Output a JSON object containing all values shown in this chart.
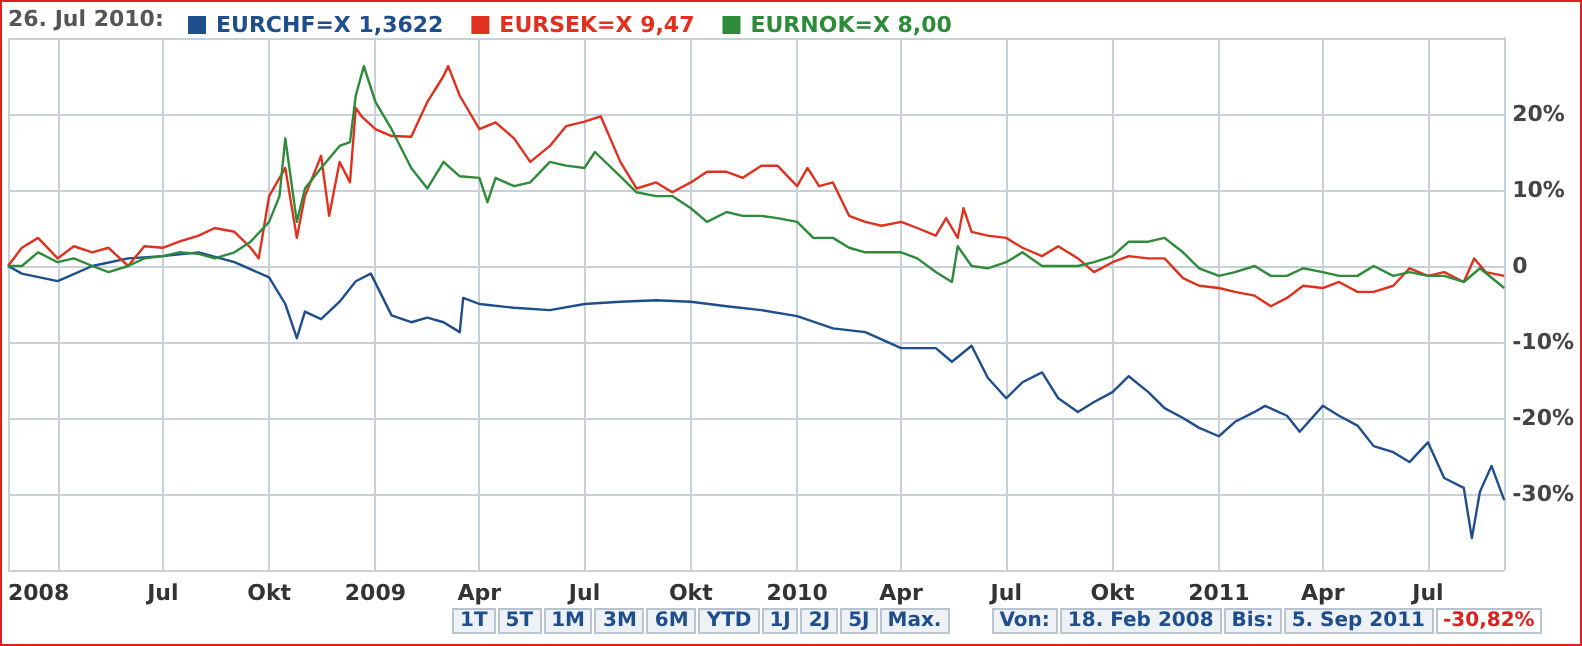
{
  "chart_data": {
    "type": "line",
    "legend_title": "26. Jul 2010:",
    "legend": "top left",
    "grid": true,
    "marker": "none",
    "line_style": "solid",
    "xlim": [
      "2008-02-18",
      "2011-09-05"
    ],
    "xticks": [
      {
        "value": "2008-02-18",
        "label": "2008"
      },
      {
        "value": "2008-04-01",
        "label": null
      },
      {
        "value": "2008-07-01",
        "label": "Jul"
      },
      {
        "value": "2008-10-01",
        "label": "Okt"
      },
      {
        "value": "2009-01-01",
        "label": "2009"
      },
      {
        "value": "2009-04-01",
        "label": "Apr"
      },
      {
        "value": "2009-07-01",
        "label": "Jul"
      },
      {
        "value": "2009-10-01",
        "label": "Okt"
      },
      {
        "value": "2010-01-01",
        "label": "2010"
      },
      {
        "value": "2010-04-01",
        "label": "Apr"
      },
      {
        "value": "2010-07-01",
        "label": "Jul"
      },
      {
        "value": "2010-10-01",
        "label": "Okt"
      },
      {
        "value": "2011-01-01",
        "label": "2011"
      },
      {
        "value": "2011-04-01",
        "label": "Apr"
      },
      {
        "value": "2011-07-01",
        "label": "Jul"
      }
    ],
    "ylim": [
      -40,
      30
    ],
    "yticks": [
      {
        "value": -40,
        "label": null
      },
      {
        "value": -30,
        "label": "-30%"
      },
      {
        "value": -20,
        "label": "-20%"
      },
      {
        "value": -10,
        "label": "-10%"
      },
      0,
      {
        "value": 10,
        "label": "10%"
      },
      {
        "value": 20,
        "label": "20%"
      },
      {
        "value": 30,
        "label": null
      }
    ],
    "series": [
      {
        "name": "EURCHF=X 1,3622",
        "color": "#1f4e8c",
        "x": [
          "2008-02-18",
          "2008-03-01",
          "2008-04-01",
          "2008-05-01",
          "2008-06-01",
          "2008-07-01",
          "2008-08-01",
          "2008-09-01",
          "2008-10-01",
          "2008-10-15",
          "2008-10-25",
          "2008-11-01",
          "2008-11-15",
          "2008-12-01",
          "2008-12-15",
          "2008-12-28",
          "2009-01-15",
          "2009-02-01",
          "2009-02-15",
          "2009-03-01",
          "2009-03-15",
          "2009-03-18",
          "2009-04-01",
          "2009-05-01",
          "2009-06-01",
          "2009-07-01",
          "2009-08-01",
          "2009-09-01",
          "2009-10-01",
          "2009-11-01",
          "2009-12-01",
          "2010-01-01",
          "2010-02-01",
          "2010-03-01",
          "2010-04-01",
          "2010-05-01",
          "2010-05-15",
          "2010-06-01",
          "2010-06-15",
          "2010-07-01",
          "2010-07-15",
          "2010-08-01",
          "2010-08-15",
          "2010-09-01",
          "2010-09-15",
          "2010-10-01",
          "2010-10-15",
          "2010-11-01",
          "2010-11-15",
          "2010-12-01",
          "2010-12-15",
          "2011-01-01",
          "2011-01-15",
          "2011-02-01",
          "2011-02-10",
          "2011-03-01",
          "2011-03-12",
          "2011-04-01",
          "2011-04-15",
          "2011-05-01",
          "2011-05-15",
          "2011-06-01",
          "2011-06-15",
          "2011-07-01",
          "2011-07-15",
          "2011-08-01",
          "2011-08-08",
          "2011-08-15",
          "2011-08-25",
          "2011-09-05"
        ],
        "values": [
          0,
          -1,
          -2,
          0,
          1,
          1.3,
          1.8,
          0.5,
          -1.5,
          -5,
          -9.5,
          -6,
          -7,
          -4.7,
          -2,
          -1,
          -6.5,
          -7.4,
          -6.8,
          -7.4,
          -8.7,
          -4.2,
          -5,
          -5.5,
          -5.8,
          -5,
          -4.7,
          -4.5,
          -4.7,
          -5.3,
          -5.8,
          -6.6,
          -8.2,
          -8.7,
          -10.8,
          -10.8,
          -12.6,
          -10.5,
          -14.7,
          -17.4,
          -15.3,
          -14,
          -17.4,
          -19.2,
          -17.9,
          -16.6,
          -14.5,
          -16.6,
          -18.7,
          -20,
          -21.3,
          -22.4,
          -20.5,
          -19.2,
          -18.4,
          -19.7,
          -21.8,
          -18.4,
          -19.7,
          -21,
          -23.7,
          -24.5,
          -25.8,
          -23.2,
          -27.9,
          -29.2,
          -35.8,
          -29.7,
          -26.3,
          -30.8
        ]
      },
      {
        "name": "EURSEK=X 9,47",
        "color": "#e0301e",
        "x": [
          "2008-02-18",
          "2008-03-01",
          "2008-03-15",
          "2008-04-01",
          "2008-04-15",
          "2008-05-01",
          "2008-05-15",
          "2008-06-01",
          "2008-06-15",
          "2008-07-01",
          "2008-07-15",
          "2008-08-01",
          "2008-08-15",
          "2008-09-01",
          "2008-09-15",
          "2008-09-22",
          "2008-10-01",
          "2008-10-15",
          "2008-10-25",
          "2008-11-01",
          "2008-11-15",
          "2008-11-22",
          "2008-12-01",
          "2008-12-10",
          "2008-12-15",
          "2008-12-20",
          "2009-01-01",
          "2009-01-15",
          "2009-02-01",
          "2009-02-15",
          "2009-03-01",
          "2009-03-05",
          "2009-03-15",
          "2009-04-01",
          "2009-04-15",
          "2009-05-01",
          "2009-05-15",
          "2009-06-01",
          "2009-06-15",
          "2009-07-01",
          "2009-07-15",
          "2009-08-01",
          "2009-08-15",
          "2009-09-01",
          "2009-09-15",
          "2009-10-01",
          "2009-10-15",
          "2009-11-01",
          "2009-11-15",
          "2009-12-01",
          "2009-12-15",
          "2010-01-01",
          "2010-01-10",
          "2010-01-20",
          "2010-02-01",
          "2010-02-15",
          "2010-03-01",
          "2010-03-15",
          "2010-04-01",
          "2010-04-15",
          "2010-05-01",
          "2010-05-10",
          "2010-05-20",
          "2010-05-25",
          "2010-06-01",
          "2010-06-15",
          "2010-07-01",
          "2010-07-15",
          "2010-08-01",
          "2010-08-15",
          "2010-09-01",
          "2010-09-15",
          "2010-10-01",
          "2010-10-15",
          "2010-11-01",
          "2010-11-15",
          "2010-12-01",
          "2010-12-15",
          "2011-01-01",
          "2011-01-15",
          "2011-02-01",
          "2011-02-15",
          "2011-03-01",
          "2011-03-15",
          "2011-04-01",
          "2011-04-15",
          "2011-05-01",
          "2011-05-15",
          "2011-06-01",
          "2011-06-15",
          "2011-07-01",
          "2011-07-15",
          "2011-08-01",
          "2011-08-10",
          "2011-08-20",
          "2011-09-05"
        ],
        "values": [
          0,
          2.4,
          3.7,
          1,
          2.6,
          1.8,
          2.4,
          0,
          2.6,
          2.4,
          3.2,
          4,
          5,
          4.5,
          2.4,
          1,
          9.2,
          12.9,
          3.7,
          9.2,
          14.5,
          6.6,
          13.7,
          11,
          20.8,
          19.7,
          18,
          17.1,
          17,
          21.6,
          25,
          26.3,
          22.4,
          18,
          18.9,
          16.8,
          13.7,
          15.8,
          18.4,
          19,
          19.7,
          13.7,
          10.2,
          11,
          9.7,
          11,
          12.4,
          12.4,
          11.6,
          13.2,
          13.2,
          10.5,
          12.9,
          10.5,
          11,
          6.6,
          5.8,
          5.3,
          5.8,
          5,
          4,
          6.3,
          3.7,
          7.6,
          4.5,
          4,
          3.7,
          2.4,
          1.3,
          2.6,
          1,
          -0.8,
          0.5,
          1.3,
          1,
          1,
          -1.6,
          -2.6,
          -2.9,
          -3.4,
          -3.9,
          -5.3,
          -4.2,
          -2.6,
          -2.9,
          -2.1,
          -3.4,
          -3.4,
          -2.6,
          -0.3,
          -1.3,
          -0.8,
          -2.1,
          1,
          -0.8,
          -1.3
        ]
      },
      {
        "name": "EURNOK=X 8,00",
        "color": "#2e8b3a",
        "x": [
          "2008-02-18",
          "2008-03-01",
          "2008-03-15",
          "2008-04-01",
          "2008-04-15",
          "2008-05-01",
          "2008-05-15",
          "2008-06-01",
          "2008-06-15",
          "2008-07-01",
          "2008-07-15",
          "2008-08-01",
          "2008-08-15",
          "2008-09-01",
          "2008-09-15",
          "2008-10-01",
          "2008-10-10",
          "2008-10-15",
          "2008-10-25",
          "2008-11-01",
          "2008-11-15",
          "2008-12-01",
          "2008-12-10",
          "2008-12-15",
          "2008-12-22",
          "2009-01-01",
          "2009-01-15",
          "2009-02-01",
          "2009-02-15",
          "2009-03-01",
          "2009-03-15",
          "2009-04-01",
          "2009-04-08",
          "2009-04-15",
          "2009-05-01",
          "2009-05-15",
          "2009-06-01",
          "2009-06-15",
          "2009-07-01",
          "2009-07-10",
          "2009-08-01",
          "2009-08-15",
          "2009-09-01",
          "2009-09-15",
          "2009-10-01",
          "2009-10-15",
          "2009-11-01",
          "2009-11-15",
          "2009-12-01",
          "2009-12-15",
          "2010-01-01",
          "2010-01-15",
          "2010-02-01",
          "2010-02-15",
          "2010-03-01",
          "2010-03-15",
          "2010-04-01",
          "2010-04-15",
          "2010-05-01",
          "2010-05-15",
          "2010-05-20",
          "2010-06-01",
          "2010-06-15",
          "2010-07-01",
          "2010-07-15",
          "2010-08-01",
          "2010-08-15",
          "2010-09-01",
          "2010-09-15",
          "2010-10-01",
          "2010-10-15",
          "2010-11-01",
          "2010-11-15",
          "2010-12-01",
          "2010-12-15",
          "2011-01-01",
          "2011-01-15",
          "2011-02-01",
          "2011-02-15",
          "2011-03-01",
          "2011-03-15",
          "2011-04-01",
          "2011-04-15",
          "2011-05-01",
          "2011-05-15",
          "2011-06-01",
          "2011-06-15",
          "2011-07-01",
          "2011-07-15",
          "2011-08-01",
          "2011-08-15",
          "2011-09-05"
        ],
        "values": [
          0,
          0,
          1.8,
          0.5,
          1,
          0,
          -0.8,
          0,
          1,
          1.3,
          1.8,
          1.6,
          1,
          1.8,
          3.2,
          5.8,
          9.2,
          16.8,
          5.8,
          10.2,
          12.9,
          15.8,
          16.3,
          22.4,
          26.3,
          21.6,
          18,
          12.9,
          10.2,
          13.7,
          11.8,
          11.6,
          8.4,
          11.6,
          10.5,
          11,
          13.7,
          13.2,
          12.9,
          15,
          11.8,
          9.7,
          9.2,
          9.2,
          7.6,
          5.8,
          7.1,
          6.6,
          6.6,
          6.3,
          5.8,
          3.7,
          3.7,
          2.4,
          1.8,
          1.8,
          1.8,
          1,
          -0.8,
          -2.1,
          2.6,
          0,
          -0.3,
          0.5,
          1.8,
          0,
          0,
          0,
          0.5,
          1.3,
          3.2,
          3.2,
          3.7,
          1.8,
          -0.3,
          -1.3,
          -0.8,
          0,
          -1.3,
          -1.3,
          -0.3,
          -0.8,
          -1.3,
          -1.3,
          0,
          -1.3,
          -0.8,
          -1.3,
          -1.3,
          -2.1,
          -0.3,
          -2.9
        ]
      }
    ],
    "annotations": [
      "1T",
      "5T",
      "1M",
      "3M",
      "6M",
      "YTD",
      "1J",
      "2J",
      "5J",
      "Max.",
      "Von:",
      "18. Feb 2008",
      "Bis:",
      "5. Sep 2011",
      "-30,82%"
    ]
  }
}
